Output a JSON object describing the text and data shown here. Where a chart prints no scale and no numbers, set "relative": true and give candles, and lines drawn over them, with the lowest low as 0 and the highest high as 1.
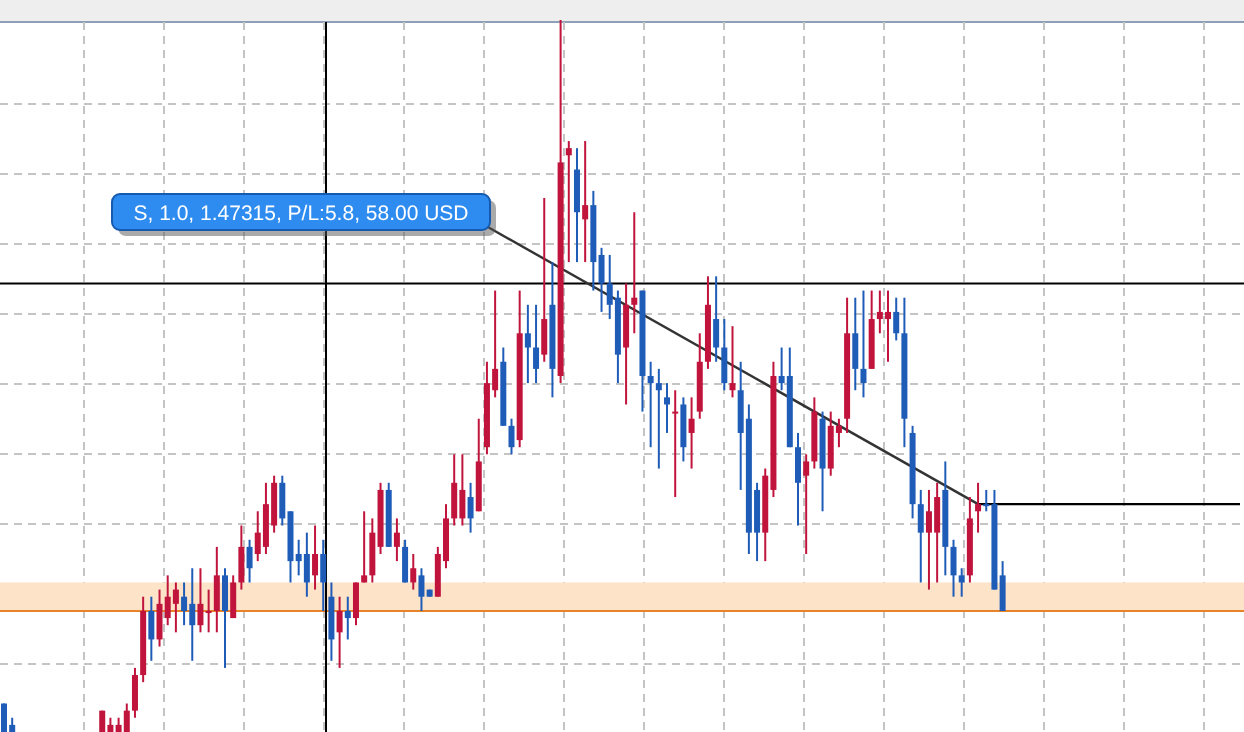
{
  "chart_data": {
    "type": "candlestick",
    "relative": true,
    "grid": true,
    "categories": [
      null,
      null,
      null,
      null,
      null,
      null,
      null,
      null,
      null,
      null,
      null,
      null,
      null,
      null,
      null,
      null,
      null,
      null,
      null,
      null,
      null,
      null,
      null,
      null,
      null,
      null,
      null,
      null,
      null,
      null,
      null,
      null,
      null,
      null,
      null,
      null,
      null,
      null,
      null,
      null,
      null,
      null,
      null,
      null,
      null,
      null,
      null,
      null,
      null,
      null,
      null,
      null,
      null,
      null,
      null,
      null,
      null,
      null,
      null,
      null,
      null,
      null,
      null,
      null,
      null,
      null,
      null,
      null,
      null,
      null,
      null,
      null,
      null,
      null,
      null,
      null,
      null,
      null,
      null,
      null,
      null,
      null,
      null,
      null,
      null,
      null,
      null,
      null,
      null,
      null,
      null,
      null,
      null,
      null,
      null,
      null,
      null,
      null,
      null,
      null,
      null,
      null,
      null,
      null,
      null,
      null,
      null,
      null,
      null,
      null,
      null,
      null,
      null,
      null,
      null,
      null,
      null,
      null,
      null,
      null,
      null,
      null,
      null,
      null,
      null,
      null,
      null,
      null,
      null,
      null,
      null,
      null,
      null,
      null,
      null,
      null,
      null,
      null,
      null,
      null,
      null,
      null,
      null,
      null,
      null,
      null,
      null,
      null,
      null,
      null,
      null,
      null
    ],
    "ohlc": [
      [
        0.04,
        0.04,
        0,
        0
      ],
      [
        0.01,
        0.02,
        0,
        0
      ],
      null,
      null,
      null,
      null,
      null,
      null,
      null,
      null,
      null,
      null,
      [
        0,
        0.03,
        0,
        0.03
      ],
      [
        0,
        0.02,
        0,
        0.01
      ],
      [
        0,
        0.02,
        0,
        0.01
      ],
      [
        0,
        0.04,
        0,
        0.03
      ],
      [
        0.03,
        0.09,
        0.02,
        0.08
      ],
      [
        0.08,
        0.19,
        0.07,
        0.17
      ],
      [
        0.17,
        0.19,
        0.1,
        0.13
      ],
      [
        0.13,
        0.2,
        0.12,
        0.18
      ],
      [
        0.16,
        0.22,
        0.15,
        0.19
      ],
      [
        0.18,
        0.21,
        0.14,
        0.2
      ],
      [
        0.19,
        0.21,
        0.15,
        0.17
      ],
      [
        0.18,
        0.23,
        0.1,
        0.15
      ],
      [
        0.15,
        0.23,
        0.14,
        0.18
      ],
      [
        0.17,
        0.2,
        0.14,
        0.17
      ],
      [
        0.17,
        0.26,
        0.14,
        0.22
      ],
      [
        0.22,
        0.23,
        0.09,
        0.17
      ],
      [
        0.16,
        0.22,
        0.16,
        0.21
      ],
      [
        0.21,
        0.29,
        0.2,
        0.26
      ],
      [
        0.26,
        0.27,
        0.21,
        0.23
      ],
      [
        0.25,
        0.31,
        0.24,
        0.28
      ],
      [
        0.26,
        0.35,
        0.25,
        0.32
      ],
      [
        0.29,
        0.36,
        0.28,
        0.35
      ],
      [
        0.35,
        0.36,
        0.29,
        0.3
      ],
      [
        0.31,
        0.31,
        0.21,
        0.24
      ],
      [
        0.25,
        0.27,
        0.22,
        0.24
      ],
      [
        0.25,
        0.28,
        0.19,
        0.21
      ],
      [
        0.22,
        0.29,
        0.2,
        0.25
      ],
      [
        0.25,
        0.27,
        0.17,
        0.21
      ],
      [
        0.19,
        0.21,
        0.1,
        0.13
      ],
      [
        0.14,
        0.19,
        0.09,
        0.17
      ],
      [
        0.17,
        0.19,
        0.13,
        0.16
      ],
      [
        0.16,
        0.21,
        0.15,
        0.21
      ],
      [
        0.21,
        0.31,
        0.21,
        0.22
      ],
      [
        0.22,
        0.3,
        0.21,
        0.28
      ],
      [
        0.26,
        0.35,
        0.25,
        0.34
      ],
      [
        0.34,
        0.35,
        0.26,
        0.26
      ],
      [
        0.26,
        0.3,
        0.24,
        0.28
      ],
      [
        0.26,
        0.27,
        0.21,
        0.21
      ],
      [
        0.21,
        0.25,
        0.2,
        0.23
      ],
      [
        0.22,
        0.23,
        0.17,
        0.19
      ],
      [
        0.2,
        0.2,
        0.19,
        0.19
      ],
      [
        0.19,
        0.26,
        0.19,
        0.25
      ],
      [
        0.24,
        0.32,
        0.23,
        0.3
      ],
      [
        0.3,
        0.39,
        0.29,
        0.35
      ],
      [
        0.3,
        0.39,
        0.29,
        0.34
      ],
      [
        0.33,
        0.35,
        0.28,
        0.3
      ],
      [
        0.31,
        0.44,
        0.31,
        0.38
      ],
      [
        0.4,
        0.52,
        0.39,
        0.49
      ],
      [
        0.48,
        0.62,
        0.47,
        0.51
      ],
      [
        0.52,
        0.54,
        0.43,
        0.43
      ],
      [
        0.43,
        0.44,
        0.39,
        0.4
      ],
      [
        0.41,
        0.62,
        0.4,
        0.56
      ],
      [
        0.56,
        0.6,
        0.49,
        0.54
      ],
      [
        0.54,
        0.6,
        0.49,
        0.51
      ],
      [
        0.53,
        0.75,
        0.52,
        0.58
      ],
      [
        0.6,
        0.66,
        0.47,
        0.51
      ],
      [
        0.5,
        1,
        0.49,
        0.8
      ],
      [
        0.81,
        0.83,
        0.66,
        0.82
      ],
      [
        0.79,
        0.82,
        0.66,
        0.73
      ],
      [
        0.72,
        0.83,
        0.66,
        0.74
      ],
      [
        0.74,
        0.76,
        0.62,
        0.66
      ],
      [
        0.67,
        0.68,
        0.59,
        0.63
      ],
      [
        0.63,
        0.67,
        0.58,
        0.6
      ],
      [
        0.61,
        0.62,
        0.49,
        0.53
      ],
      [
        0.54,
        0.63,
        0.46,
        0.6
      ],
      [
        0.6,
        0.73,
        0.56,
        0.61
      ],
      [
        0.62,
        0.62,
        0.45,
        0.5
      ],
      [
        0.5,
        0.52,
        0.4,
        0.49
      ],
      [
        0.49,
        0.51,
        0.37,
        0.48
      ],
      [
        0.47,
        0.49,
        0.42,
        0.46
      ],
      [
        0.45,
        0.48,
        0.33,
        0.45
      ],
      [
        0.46,
        0.47,
        0.38,
        0.4
      ],
      [
        0.42,
        0.47,
        0.37,
        0.44
      ],
      [
        0.45,
        0.56,
        0.44,
        0.52
      ],
      [
        0.52,
        0.64,
        0.51,
        0.6
      ],
      [
        0.58,
        0.64,
        0.52,
        0.54
      ],
      [
        0.54,
        0.58,
        0.48,
        0.49
      ],
      [
        0.48,
        0.57,
        0.47,
        0.49
      ],
      [
        0.48,
        0.52,
        0.34,
        0.42
      ],
      [
        0.44,
        0.46,
        0.25,
        0.28
      ],
      [
        0.34,
        0.35,
        0.24,
        0.28
      ],
      [
        0.28,
        0.37,
        0.24,
        0.36
      ],
      [
        0.34,
        0.52,
        0.33,
        0.5
      ],
      [
        0.5,
        0.54,
        0.48,
        0.49
      ],
      [
        0.5,
        0.54,
        0.4,
        0.4
      ],
      [
        0.4,
        0.42,
        0.29,
        0.35
      ],
      [
        0.36,
        0.39,
        0.25,
        0.38
      ],
      [
        0.38,
        0.47,
        0.37,
        0.45
      ],
      [
        0.44,
        0.45,
        0.31,
        0.37
      ],
      [
        0.37,
        0.45,
        0.36,
        0.43
      ],
      [
        0.42,
        0.44,
        0.4,
        0.43
      ],
      [
        0.44,
        0.61,
        0.42,
        0.56
      ],
      [
        0.56,
        0.61,
        0.48,
        0.51
      ],
      [
        0.51,
        0.62,
        0.47,
        0.49
      ],
      [
        0.51,
        0.62,
        0.51,
        0.58
      ],
      [
        0.58,
        0.62,
        0.56,
        0.59
      ],
      [
        0.58,
        0.62,
        0.52,
        0.59
      ],
      [
        0.59,
        0.61,
        0.55,
        0.56
      ],
      [
        0.56,
        0.61,
        0.4,
        0.44
      ],
      [
        0.42,
        0.43,
        0.3,
        0.32
      ],
      [
        0.32,
        0.34,
        0.21,
        0.28
      ],
      [
        0.28,
        0.34,
        0.2,
        0.31
      ],
      [
        0.28,
        0.35,
        0.21,
        0.33
      ],
      [
        0.34,
        0.38,
        0.22,
        0.26
      ],
      [
        0.26,
        0.27,
        0.19,
        0.22
      ],
      [
        0.22,
        0.23,
        0.19,
        0.21
      ],
      [
        0.22,
        0.33,
        0.21,
        0.3
      ],
      [
        0.31,
        0.35,
        0.28,
        0.32
      ],
      [
        0.32,
        0.34,
        0.31,
        0.32
      ],
      [
        0.32,
        0.34,
        0.2,
        0.2
      ],
      [
        0.22,
        0.24,
        0.17,
        0.17
      ],
      null,
      null,
      null,
      null,
      null,
      null,
      null,
      null,
      null,
      null,
      null,
      null,
      null,
      null,
      null,
      null,
      null,
      null,
      null,
      null,
      null,
      null,
      null,
      null,
      null,
      null,
      null,
      null,
      null
    ],
    "colors": [
      "#1f5cb8",
      "#1f5cb8",
      null,
      null,
      null,
      null,
      null,
      null,
      null,
      null,
      null,
      null,
      "#c0143c",
      "#c0143c",
      "#c0143c",
      "#c0143c",
      "#c0143c",
      "#c0143c",
      "#1f5cb8",
      "#c0143c",
      "#c0143c",
      "#c0143c",
      "#1f5cb8",
      "#1f5cb8",
      "#c0143c",
      "#c0143c",
      "#c0143c",
      "#1f5cb8",
      "#c0143c",
      "#c0143c",
      "#1f5cb8",
      "#c0143c",
      "#c0143c",
      "#c0143c",
      "#1f5cb8",
      "#1f5cb8",
      "#1f5cb8",
      "#1f5cb8",
      "#c0143c",
      "#1f5cb8",
      "#1f5cb8",
      "#c0143c",
      "#1f5cb8",
      "#c0143c",
      "#c0143c",
      "#c0143c",
      "#c0143c",
      "#1f5cb8",
      "#c0143c",
      "#1f5cb8",
      "#c0143c",
      "#1f5cb8",
      "#1f5cb8",
      "#c0143c",
      "#c0143c",
      "#c0143c",
      "#c0143c",
      "#1f5cb8",
      "#c0143c",
      "#c0143c",
      "#c0143c",
      "#1f5cb8",
      "#1f5cb8",
      "#c0143c",
      "#1f5cb8",
      "#1f5cb8",
      "#c0143c",
      "#1f5cb8",
      "#c0143c",
      "#c0143c",
      "#1f5cb8",
      "#c0143c",
      "#1f5cb8",
      "#1f5cb8",
      "#1f5cb8",
      "#1f5cb8",
      "#c0143c",
      "#c0143c",
      "#1f5cb8",
      "#1f5cb8",
      "#1f5cb8",
      "#1f5cb8",
      "#c0143c",
      "#1f5cb8",
      "#c0143c",
      "#c0143c",
      "#c0143c",
      "#1f5cb8",
      "#1f5cb8",
      "#c0143c",
      "#1f5cb8",
      "#1f5cb8",
      "#1f5cb8",
      "#c0143c",
      "#c0143c",
      "#1f5cb8",
      "#1f5cb8",
      "#1f5cb8",
      "#c0143c",
      "#c0143c",
      "#1f5cb8",
      "#c0143c",
      "#c0143c",
      "#c0143c",
      "#1f5cb8",
      "#1f5cb8",
      "#c0143c",
      "#c0143c",
      "#c0143c",
      "#1f5cb8",
      "#1f5cb8",
      "#1f5cb8",
      "#1f5cb8",
      "#c0143c",
      "#c0143c",
      "#1f5cb8",
      "#1f5cb8",
      "#1f5cb8",
      "#c0143c",
      "#c0143c",
      "#1f5cb8",
      "#1f5cb8",
      "#1f5cb8",
      null,
      null,
      null,
      null,
      null,
      null,
      null,
      null,
      null,
      null,
      null,
      null,
      null,
      null,
      null,
      null,
      null,
      null,
      null,
      null,
      null,
      null,
      null,
      null,
      null,
      null,
      null,
      null,
      null
    ],
    "series": [
      {
        "type": "line",
        "color": "#333333",
        "line_style": "solid",
        "values": [
          null,
          null,
          null,
          null,
          null,
          null,
          null,
          null,
          null,
          null,
          null,
          null,
          null,
          null,
          null,
          null,
          null,
          null,
          null,
          null,
          null,
          null,
          null,
          null,
          null,
          null,
          null,
          null,
          null,
          null,
          null,
          null,
          null,
          null,
          null,
          null,
          null,
          null,
          null,
          null,
          null,
          null,
          null,
          null,
          null,
          null,
          null,
          null,
          null,
          null,
          null,
          null,
          null,
          null,
          null,
          null,
          null,
          null,
          null,
          0.71,
          null,
          null,
          null,
          null,
          null,
          null,
          null,
          null,
          null,
          null,
          null,
          null,
          null,
          null,
          null,
          null,
          null,
          null,
          null,
          null,
          null,
          null,
          null,
          null,
          null,
          null,
          null,
          null,
          null,
          null,
          null,
          null,
          null,
          null,
          null,
          null,
          null,
          null,
          null,
          null,
          null,
          null,
          null,
          null,
          null,
          null,
          null,
          null,
          null,
          null,
          null,
          null,
          null,
          null,
          null,
          null,
          null,
          null,
          null,
          0.32,
          null,
          null,
          null,
          null,
          null,
          null,
          null,
          null,
          null,
          null,
          null,
          null,
          null,
          null,
          null,
          null,
          null,
          null,
          null,
          null,
          null,
          null,
          null,
          null,
          null,
          null,
          null,
          null,
          null,
          null,
          null,
          null
        ]
      },
      {
        "type": "line",
        "color": "#000000",
        "line_style": "solid",
        "values": [
          null,
          null,
          null,
          null,
          null,
          null,
          null,
          null,
          null,
          null,
          null,
          null,
          null,
          null,
          null,
          null,
          null,
          null,
          null,
          null,
          null,
          null,
          null,
          null,
          null,
          null,
          null,
          null,
          null,
          null,
          null,
          null,
          null,
          null,
          null,
          null,
          null,
          null,
          null,
          null,
          null,
          null,
          null,
          null,
          null,
          null,
          null,
          null,
          null,
          null,
          null,
          null,
          null,
          null,
          null,
          null,
          null,
          null,
          null,
          null,
          null,
          null,
          null,
          null,
          null,
          null,
          null,
          null,
          null,
          null,
          null,
          null,
          null,
          null,
          null,
          null,
          null,
          null,
          null,
          null,
          null,
          null,
          null,
          null,
          null,
          null,
          null,
          null,
          null,
          null,
          null,
          null,
          null,
          null,
          null,
          null,
          null,
          null,
          null,
          null,
          null,
          null,
          null,
          null,
          null,
          null,
          null,
          null,
          null,
          null,
          null,
          null,
          null,
          null,
          null,
          null,
          null,
          null,
          null,
          0.32,
          0.32,
          0.32,
          0.32,
          0.32,
          0.32,
          0.32,
          0.32,
          0.32,
          0.32,
          0.32,
          0.32,
          0.32,
          0.32,
          0.32,
          0.32,
          0.32,
          0.32,
          0.32,
          0.32,
          0.32,
          0.32,
          0.32,
          0.32,
          0.32,
          0.32,
          0.32,
          0.32,
          0.32,
          0.32,
          0.32,
          0.32,
          0.32
        ]
      }
    ],
    "bands": [
      {
        "axis": "y",
        "from": 0.17,
        "to": 0.21,
        "color": "#fde3c8"
      }
    ],
    "ref_lines": [
      {
        "axis": "y",
        "value": 0.17,
        "color": "#e8832a"
      },
      {
        "axis": "y",
        "value": 0.63,
        "color": "#000000"
      }
    ],
    "annotations": [
      "S, 1.0, 1.47315, P/L:5.8, 58.00 USD"
    ]
  }
}
